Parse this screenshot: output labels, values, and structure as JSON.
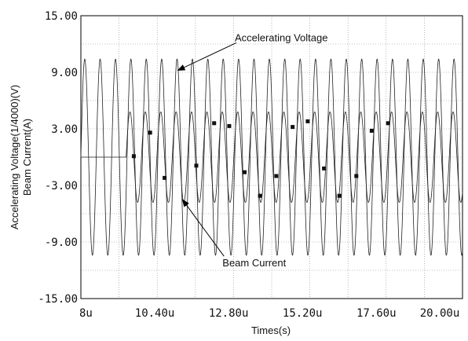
{
  "chart_data": {
    "type": "line",
    "title": "",
    "xlabel": "Times(s)",
    "ylabel_lines": [
      "Accelerating Voltage(1/4000)(V)",
      "Beam Current(A)"
    ],
    "xlim": [
      8.0,
      20.4
    ],
    "ylim": [
      -15.0,
      15.0
    ],
    "grid": true,
    "x_tick_values": [
      8.0,
      10.4,
      12.8,
      15.2,
      17.6,
      20.0
    ],
    "x_tick_labels": [
      "8u",
      "10.40u",
      "12.80u",
      "15.20u",
      "17.60u",
      "20.00u"
    ],
    "y_tick_values": [
      15,
      9,
      3,
      -3,
      -9,
      -15
    ],
    "y_tick_labels": [
      "15.00",
      "9.00",
      "3.00",
      "-3.00",
      "-9.00",
      "-15.00"
    ],
    "series": [
      {
        "label_key": "accelerating_voltage",
        "style": "sine",
        "start_x": 8.0,
        "end_x": 20.4,
        "period": 0.5,
        "amplitude": 10.4,
        "offset": 0.0,
        "color": "#222222"
      },
      {
        "label_key": "beam_current",
        "style": "sine",
        "start_x": 9.47,
        "end_x": 20.4,
        "flat_before": 0.0,
        "period": 0.5,
        "amplitude": 4.8,
        "offset": 0.0,
        "color": "#222222",
        "markers": [
          {
            "x": 9.72,
            "y": 0.1
          },
          {
            "x": 10.25,
            "y": 2.6
          },
          {
            "x": 10.72,
            "y": -2.2
          },
          {
            "x": 11.75,
            "y": -0.9
          },
          {
            "x": 12.33,
            "y": 3.6
          },
          {
            "x": 12.82,
            "y": 3.3
          },
          {
            "x": 13.32,
            "y": -1.6
          },
          {
            "x": 13.82,
            "y": -4.1
          },
          {
            "x": 14.35,
            "y": -2.0
          },
          {
            "x": 14.88,
            "y": 3.2
          },
          {
            "x": 15.37,
            "y": 3.8
          },
          {
            "x": 15.9,
            "y": -1.2
          },
          {
            "x": 16.4,
            "y": -4.1
          },
          {
            "x": 16.95,
            "y": -2.0
          },
          {
            "x": 17.45,
            "y": 2.8
          },
          {
            "x": 17.98,
            "y": 3.6
          }
        ]
      }
    ],
    "annotations": [
      {
        "text": "Accelerating Voltage",
        "text_at": [
          13.0,
          12.3
        ],
        "arrow_to": [
          11.15,
          9.2
        ]
      },
      {
        "text": "Beam Current",
        "text_at": [
          12.6,
          -11.6
        ],
        "arrow_to": [
          11.3,
          -4.5
        ]
      }
    ]
  }
}
